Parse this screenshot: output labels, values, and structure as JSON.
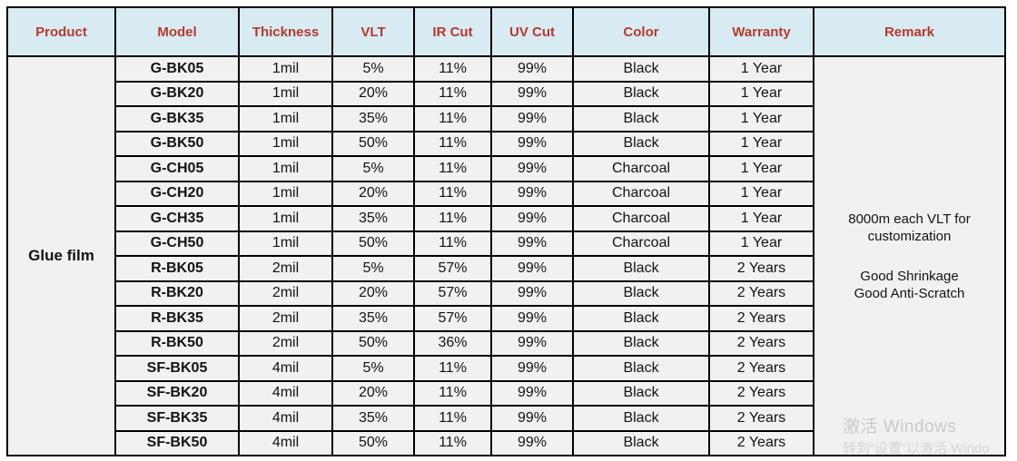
{
  "table": {
    "headers": [
      "Product",
      "Model",
      "Thickness",
      "VLT",
      "IR Cut",
      "UV Cut",
      "Color",
      "Warranty",
      "Remark"
    ],
    "product": "Glue film",
    "rows": [
      {
        "model": "G-BK05",
        "thickness": "1mil",
        "vlt": "5%",
        "ir_cut": "11%",
        "uv_cut": "99%",
        "color": "Black",
        "warranty": "1 Year"
      },
      {
        "model": "G-BK20",
        "thickness": "1mil",
        "vlt": "20%",
        "ir_cut": "11%",
        "uv_cut": "99%",
        "color": "Black",
        "warranty": "1 Year"
      },
      {
        "model": "G-BK35",
        "thickness": "1mil",
        "vlt": "35%",
        "ir_cut": "11%",
        "uv_cut": "99%",
        "color": "Black",
        "warranty": "1 Year"
      },
      {
        "model": "G-BK50",
        "thickness": "1mil",
        "vlt": "50%",
        "ir_cut": "11%",
        "uv_cut": "99%",
        "color": "Black",
        "warranty": "1 Year"
      },
      {
        "model": "G-CH05",
        "thickness": "1mil",
        "vlt": "5%",
        "ir_cut": "11%",
        "uv_cut": "99%",
        "color": "Charcoal",
        "warranty": "1 Year"
      },
      {
        "model": "G-CH20",
        "thickness": "1mil",
        "vlt": "20%",
        "ir_cut": "11%",
        "uv_cut": "99%",
        "color": "Charcoal",
        "warranty": "1 Year"
      },
      {
        "model": "G-CH35",
        "thickness": "1mil",
        "vlt": "35%",
        "ir_cut": "11%",
        "uv_cut": "99%",
        "color": "Charcoal",
        "warranty": "1 Year"
      },
      {
        "model": "G-CH50",
        "thickness": "1mil",
        "vlt": "50%",
        "ir_cut": "11%",
        "uv_cut": "99%",
        "color": "Charcoal",
        "warranty": "1 Year"
      },
      {
        "model": "R-BK05",
        "thickness": "2mil",
        "vlt": "5%",
        "ir_cut": "57%",
        "uv_cut": "99%",
        "color": "Black",
        "warranty": "2 Years"
      },
      {
        "model": "R-BK20",
        "thickness": "2mil",
        "vlt": "20%",
        "ir_cut": "57%",
        "uv_cut": "99%",
        "color": "Black",
        "warranty": "2 Years"
      },
      {
        "model": "R-BK35",
        "thickness": "2mil",
        "vlt": "35%",
        "ir_cut": "57%",
        "uv_cut": "99%",
        "color": "Black",
        "warranty": "2 Years"
      },
      {
        "model": "R-BK50",
        "thickness": "2mil",
        "vlt": "50%",
        "ir_cut": "36%",
        "uv_cut": "99%",
        "color": "Black",
        "warranty": "2 Years"
      },
      {
        "model": "SF-BK05",
        "thickness": "4mil",
        "vlt": "5%",
        "ir_cut": "11%",
        "uv_cut": "99%",
        "color": "Black",
        "warranty": "2 Years"
      },
      {
        "model": "SF-BK20",
        "thickness": "4mil",
        "vlt": "20%",
        "ir_cut": "11%",
        "uv_cut": "99%",
        "color": "Black",
        "warranty": "2 Years"
      },
      {
        "model": "SF-BK35",
        "thickness": "4mil",
        "vlt": "35%",
        "ir_cut": "11%",
        "uv_cut": "99%",
        "color": "Black",
        "warranty": "2 Years"
      },
      {
        "model": "SF-BK50",
        "thickness": "4mil",
        "vlt": "50%",
        "ir_cut": "11%",
        "uv_cut": "99%",
        "color": "Black",
        "warranty": "2 Years"
      }
    ],
    "remark": {
      "line1": "8000m each VLT for",
      "line2": "customization",
      "line3": "Good Shrinkage",
      "line4": "Good Anti-Scratch"
    }
  },
  "watermark": {
    "line1": "激活 Windows",
    "line2": "转到“设置”以激活 Windo"
  },
  "colors": {
    "header_bg": "#d9ebf2",
    "header_text": "#b6392f",
    "cell_bg": "#f1f1f1",
    "border": "#000000"
  }
}
